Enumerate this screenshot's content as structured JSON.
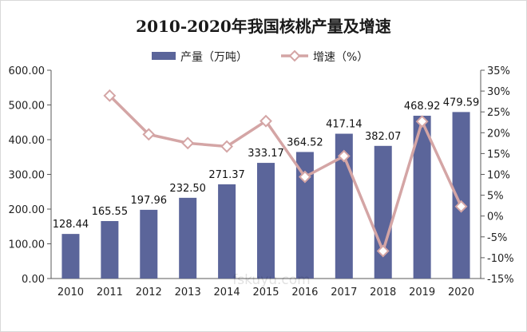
{
  "chart_data": {
    "type": "bar",
    "title": "2010-2020年我国核桃产量及增速",
    "categories": [
      "2010",
      "2011",
      "2012",
      "2013",
      "2014",
      "2015",
      "2016",
      "2017",
      "2018",
      "2019",
      "2020"
    ],
    "series": [
      {
        "name": "产量（万吨）",
        "type": "bar",
        "axis": "left",
        "color": "#5b659a",
        "values": [
          128.44,
          165.55,
          197.96,
          232.5,
          271.37,
          333.17,
          364.52,
          417.14,
          382.07,
          468.92,
          479.59
        ],
        "labels": [
          "128.44",
          "165.55",
          "197.96",
          "232.50",
          "271.37",
          "333.17",
          "364.52",
          "417.14",
          "382.07",
          "468.92",
          "479.59"
        ]
      },
      {
        "name": "增速（%）",
        "type": "line",
        "axis": "right",
        "color": "#d4a5a5",
        "values": [
          null,
          28.9,
          19.6,
          17.5,
          16.7,
          22.8,
          9.4,
          14.4,
          -8.4,
          22.7,
          2.3
        ]
      }
    ],
    "left_axis": {
      "min": 0,
      "max": 600,
      "ticks": [
        0,
        100,
        200,
        300,
        400,
        500,
        600
      ],
      "tick_labels": [
        "0.00",
        "100.00",
        "200.00",
        "300.00",
        "400.00",
        "500.00",
        "600.00"
      ]
    },
    "right_axis": {
      "min": -15,
      "max": 35,
      "ticks": [
        -15,
        -10,
        -5,
        0,
        5,
        10,
        15,
        20,
        25,
        30,
        35
      ],
      "tick_labels": [
        "-15%",
        "-10%",
        "-5%",
        "0%",
        "5%",
        "10%",
        "15%",
        "20%",
        "25%",
        "30%",
        "35%"
      ]
    },
    "legend_position": "top",
    "grid": false
  },
  "watermark": "fskuyu.com"
}
